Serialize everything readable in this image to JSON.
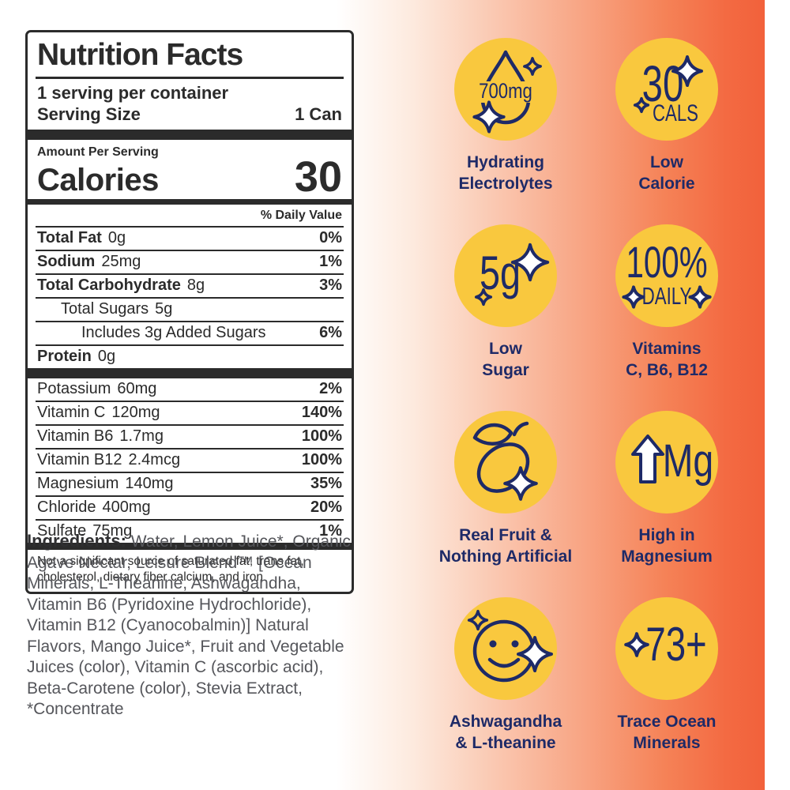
{
  "nutrition_label": {
    "title": "Nutrition Facts",
    "servings_per_container": "1 serving per container",
    "serving_size_label": "Serving Size",
    "serving_size_value": "1 Can",
    "amount_per_serving": "Amount Per Serving",
    "calories_label": "Calories",
    "calories_value": "30",
    "daily_value_header": "% Daily Value",
    "main_rows": [
      {
        "name": "Total Fat",
        "amount": "0g",
        "dv": "0%",
        "b": true,
        "ind": 0
      },
      {
        "name": "Sodium",
        "amount": "25mg",
        "dv": "1%",
        "b": true,
        "ind": 0
      },
      {
        "name": "Total Carbohydrate",
        "amount": "8g",
        "dv": "3%",
        "b": true,
        "ind": 0
      },
      {
        "name": "Total Sugars",
        "amount": "5g",
        "dv": "",
        "b": false,
        "ind": 1
      },
      {
        "name": "Includes 3g Added Sugars",
        "amount": "",
        "dv": "6%",
        "b": false,
        "ind": 2
      },
      {
        "name": "Protein",
        "amount": "0g",
        "dv": "",
        "b": true,
        "ind": 0
      }
    ],
    "mineral_rows": [
      {
        "name": "Potassium",
        "amount": "60mg",
        "dv": "2%"
      },
      {
        "name": "Vitamin C",
        "amount": "120mg",
        "dv": "140%"
      },
      {
        "name": "Vitamin B6",
        "amount": "1.7mg",
        "dv": "100%"
      },
      {
        "name": "Vitamin B12",
        "amount": "2.4mcg",
        "dv": "100%"
      },
      {
        "name": "Magnesium",
        "amount": "140mg",
        "dv": "35%"
      },
      {
        "name": "Chloride",
        "amount": "400mg",
        "dv": "20%"
      },
      {
        "name": "Sulfate",
        "amount": "75mg",
        "dv": "1%"
      }
    ],
    "footnote": "Not a significant source of saturated fat, trans fat, cholesterol, dietary fiber calcium, and iron"
  },
  "ingredients": {
    "label": "Ingredients:",
    "text": " Water, Lemon Juice*, Organic Agave Nectar, Leisure Blend™ [Ocean Minerals, L-Theanine, Ashwagandha, Vitamin B6 (Pyridoxine Hydrochloride), Vitamin B12 (Cyanocobalmin)] Natural Flavors, Mango Juice*, Fruit and Vegetable Juices (color), Vitamin C (ascorbic acid), Beta-Carotene (color), Stevia Extract, *Concentrate"
  },
  "badges": [
    {
      "icon": "water-drop-sparkle-icon",
      "icon_text": "700mg",
      "label_lines": [
        "Hydrating",
        "Electrolytes"
      ]
    },
    {
      "icon": "sparkle-count-icon",
      "icon_text": "30",
      "icon_subtext": "CALS",
      "label_lines": [
        "Low",
        "Calorie"
      ]
    },
    {
      "icon": "sparkle-grams-icon",
      "icon_text": "5g",
      "label_lines": [
        "Low",
        "Sugar"
      ]
    },
    {
      "icon": "daily-value-sparkle-icon",
      "icon_text": "100%",
      "icon_subtext": "DAILY",
      "label_lines": [
        "Vitamins",
        "C, B6, B12"
      ]
    },
    {
      "icon": "lemon-sparkle-icon",
      "label_lines": [
        "Real Fruit &",
        "Nothing Artificial"
      ]
    },
    {
      "icon": "arrow-up-magnesium-icon",
      "icon_text": "Mg",
      "label_lines": [
        "High in",
        "Magnesium"
      ]
    },
    {
      "icon": "smiley-sparkle-icon",
      "label_lines": [
        "Ashwagandha",
        "& L-theanine"
      ]
    },
    {
      "icon": "trace-minerals-sparkle-icon",
      "icon_text": "73+",
      "label_lines": [
        "Trace Ocean",
        "Minerals"
      ]
    }
  ],
  "colors": {
    "badge_circle": "#F9C83E",
    "badge_navy": "#1E2A67",
    "label_ink": "#2B2B2B",
    "ingredients_gray": "#55565B",
    "gradient_end": "#F2613B"
  }
}
